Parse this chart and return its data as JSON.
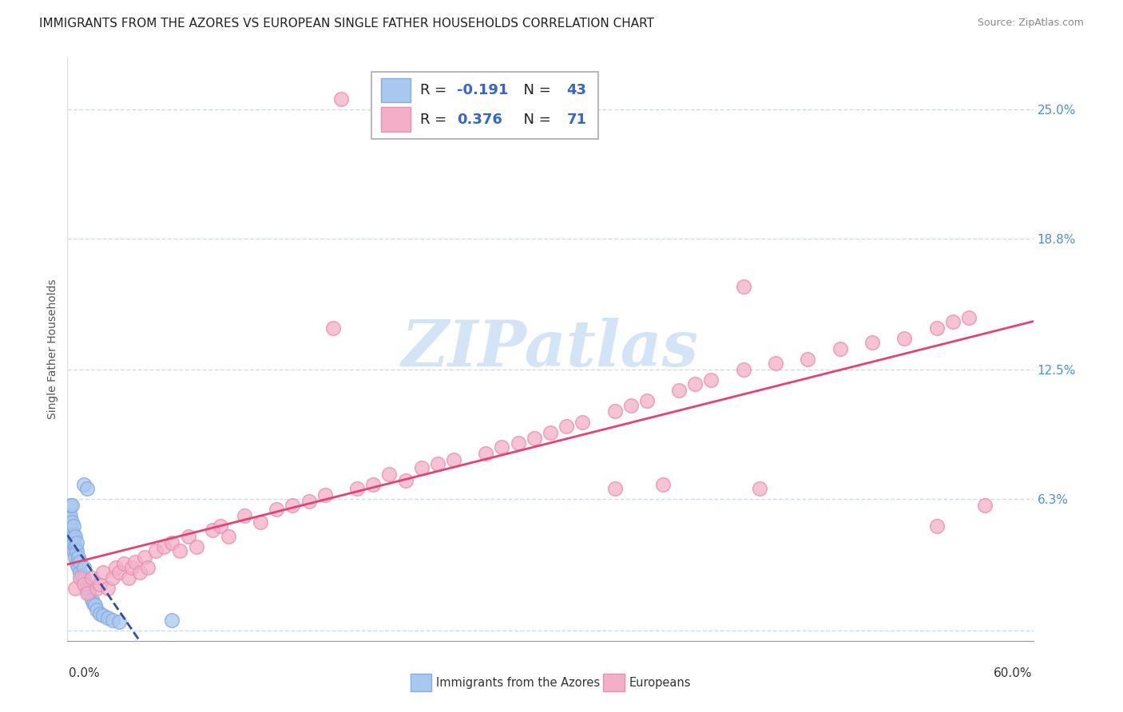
{
  "title": "IMMIGRANTS FROM THE AZORES VS EUROPEAN SINGLE FATHER HOUSEHOLDS CORRELATION CHART",
  "source": "Source: ZipAtlas.com",
  "ylabel": "Single Father Households",
  "ytick_vals": [
    0.0,
    0.063,
    0.125,
    0.188,
    0.25
  ],
  "ytick_labels": [
    "",
    "6.3%",
    "12.5%",
    "18.8%",
    "25.0%"
  ],
  "xlim": [
    0.0,
    0.6
  ],
  "ylim": [
    -0.005,
    0.275
  ],
  "legend1_r": "-0.191",
  "legend1_n": "43",
  "legend2_r": "0.376",
  "legend2_n": "71",
  "blue_color": "#a8c8f0",
  "pink_color": "#f4afc8",
  "blue_edge_color": "#88aadc",
  "pink_edge_color": "#e890b0",
  "blue_line_color": "#3050a0",
  "pink_line_color": "#e84070",
  "r_value_color": "#3366cc",
  "n_value_color": "#3366cc",
  "watermark_color": "#d4e4f7",
  "title_fontsize": 11,
  "tick_fontsize": 11,
  "label_fontsize": 10,
  "blue_x": [
    0.001,
    0.001,
    0.002,
    0.002,
    0.002,
    0.002,
    0.003,
    0.003,
    0.003,
    0.003,
    0.003,
    0.004,
    0.004,
    0.004,
    0.004,
    0.005,
    0.005,
    0.005,
    0.006,
    0.006,
    0.006,
    0.007,
    0.007,
    0.008,
    0.008,
    0.009,
    0.01,
    0.01,
    0.011,
    0.012,
    0.013,
    0.015,
    0.016,
    0.017,
    0.018,
    0.02,
    0.022,
    0.025,
    0.028,
    0.032,
    0.01,
    0.012,
    0.065
  ],
  "blue_y": [
    0.05,
    0.055,
    0.045,
    0.05,
    0.055,
    0.06,
    0.04,
    0.045,
    0.048,
    0.052,
    0.06,
    0.038,
    0.042,
    0.046,
    0.05,
    0.035,
    0.04,
    0.045,
    0.032,
    0.038,
    0.042,
    0.03,
    0.035,
    0.028,
    0.033,
    0.026,
    0.025,
    0.03,
    0.022,
    0.02,
    0.018,
    0.015,
    0.013,
    0.012,
    0.01,
    0.008,
    0.007,
    0.006,
    0.005,
    0.004,
    0.07,
    0.068,
    0.005
  ],
  "pink_x": [
    0.005,
    0.008,
    0.01,
    0.012,
    0.015,
    0.018,
    0.02,
    0.022,
    0.025,
    0.028,
    0.03,
    0.032,
    0.035,
    0.038,
    0.04,
    0.042,
    0.045,
    0.048,
    0.05,
    0.055,
    0.06,
    0.065,
    0.07,
    0.075,
    0.08,
    0.09,
    0.095,
    0.1,
    0.11,
    0.12,
    0.13,
    0.14,
    0.15,
    0.16,
    0.17,
    0.18,
    0.19,
    0.2,
    0.21,
    0.22,
    0.23,
    0.24,
    0.26,
    0.27,
    0.28,
    0.29,
    0.3,
    0.31,
    0.32,
    0.34,
    0.35,
    0.36,
    0.38,
    0.39,
    0.4,
    0.42,
    0.44,
    0.46,
    0.48,
    0.5,
    0.52,
    0.54,
    0.55,
    0.56,
    0.165,
    0.34,
    0.43,
    0.54,
    0.57,
    0.42,
    0.37
  ],
  "pink_y": [
    0.02,
    0.025,
    0.022,
    0.018,
    0.025,
    0.02,
    0.022,
    0.028,
    0.02,
    0.025,
    0.03,
    0.028,
    0.032,
    0.025,
    0.03,
    0.033,
    0.028,
    0.035,
    0.03,
    0.038,
    0.04,
    0.042,
    0.038,
    0.045,
    0.04,
    0.048,
    0.05,
    0.045,
    0.055,
    0.052,
    0.058,
    0.06,
    0.062,
    0.065,
    0.255,
    0.068,
    0.07,
    0.075,
    0.072,
    0.078,
    0.08,
    0.082,
    0.085,
    0.088,
    0.09,
    0.092,
    0.095,
    0.098,
    0.1,
    0.105,
    0.108,
    0.11,
    0.115,
    0.118,
    0.12,
    0.125,
    0.128,
    0.13,
    0.135,
    0.138,
    0.14,
    0.145,
    0.148,
    0.15,
    0.145,
    0.068,
    0.068,
    0.05,
    0.06,
    0.165,
    0.07
  ]
}
